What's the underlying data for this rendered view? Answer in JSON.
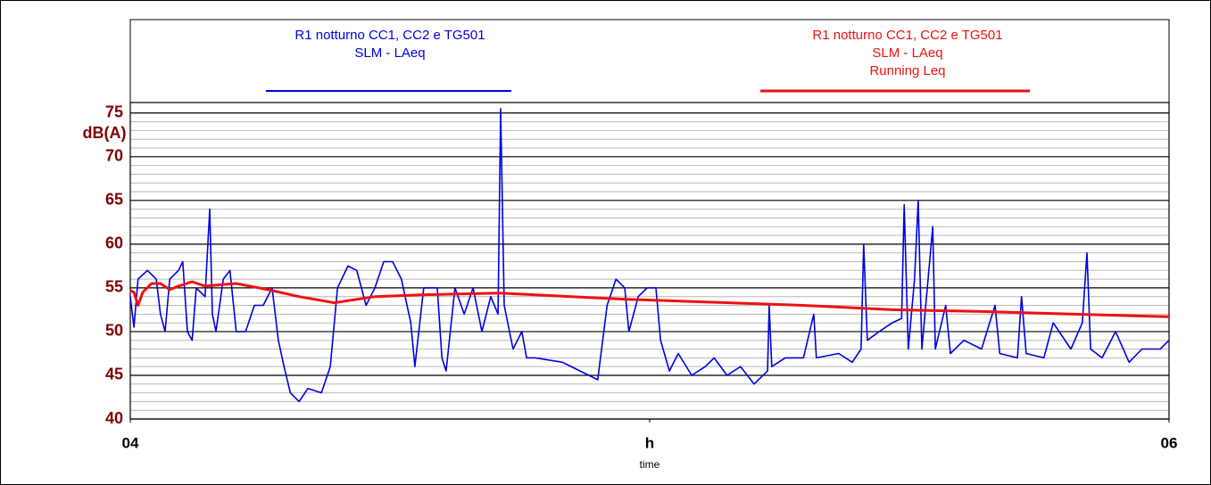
{
  "chart_data": {
    "type": "line",
    "y_label": "dB(A)",
    "x_label": "time",
    "xlim": [
      4,
      6
    ],
    "xticks": [
      {
        "value": 4,
        "label": "04"
      },
      {
        "value": 5,
        "label": "h"
      },
      {
        "value": 6,
        "label": "06"
      }
    ],
    "ylim": [
      40,
      76.2
    ],
    "yticks": [
      40,
      45,
      50,
      55,
      60,
      65,
      70,
      75
    ],
    "minor_yticks": [
      41,
      42,
      43,
      44,
      46,
      47,
      48,
      49,
      51,
      52,
      53,
      54,
      56,
      57,
      58,
      59,
      61,
      62,
      63,
      64,
      66,
      67,
      68,
      69,
      71,
      72,
      73,
      74
    ],
    "grid": true,
    "series": [
      {
        "name": [
          "R1 notturno CC1, CC2 e TG501",
          "SLM - LAeq"
        ],
        "color": "#0000e0",
        "x": [
          4.0,
          4.007,
          4.015,
          4.033,
          4.05,
          4.058,
          4.067,
          4.076,
          4.093,
          4.101,
          4.11,
          4.119,
          4.127,
          4.144,
          4.153,
          4.158,
          4.165,
          4.179,
          4.192,
          4.204,
          4.222,
          4.239,
          4.256,
          4.273,
          4.285,
          4.296,
          4.308,
          4.325,
          4.342,
          4.368,
          4.385,
          4.399,
          4.419,
          4.436,
          4.454,
          4.471,
          4.488,
          4.505,
          4.522,
          4.54,
          4.548,
          4.565,
          4.591,
          4.6,
          4.608,
          4.625,
          4.643,
          4.66,
          4.677,
          4.694,
          4.708,
          4.713,
          4.72,
          4.737,
          4.754,
          4.763,
          4.78,
          4.832,
          4.866,
          4.9,
          4.918,
          4.935,
          4.952,
          4.96,
          4.978,
          4.995,
          5.012,
          5.021,
          5.038,
          5.055,
          5.081,
          5.107,
          5.124,
          5.149,
          5.175,
          5.201,
          5.227,
          5.23,
          5.235,
          5.261,
          5.296,
          5.316,
          5.321,
          5.364,
          5.39,
          5.407,
          5.412,
          5.419,
          5.442,
          5.467,
          5.485,
          5.49,
          5.498,
          5.51,
          5.517,
          5.524,
          5.545,
          5.55,
          5.57,
          5.579,
          5.605,
          5.639,
          5.665,
          5.674,
          5.708,
          5.716,
          5.725,
          5.759,
          5.777,
          5.811,
          5.833,
          5.842,
          5.849,
          5.871,
          5.897,
          5.923,
          5.948,
          5.983,
          6.0
        ],
        "values": [
          54,
          50.5,
          56,
          57,
          56,
          52,
          50,
          56,
          57,
          58,
          50,
          49,
          55,
          54,
          64,
          52,
          50,
          56,
          57,
          50,
          50,
          53,
          53,
          55,
          49,
          46,
          43,
          42,
          43.5,
          43,
          46,
          55,
          57.5,
          57,
          53,
          55,
          58,
          58,
          56,
          51,
          46,
          55,
          55,
          47,
          45.5,
          55,
          52,
          55,
          50,
          54,
          52,
          75.5,
          53,
          48,
          50,
          47,
          47,
          46.5,
          45.5,
          44.5,
          53,
          56,
          55,
          50,
          54,
          55,
          55,
          49,
          45.5,
          47.5,
          45,
          46,
          47,
          45,
          46,
          44,
          45.5,
          53,
          46,
          47,
          47,
          52,
          47,
          47.5,
          46.5,
          48,
          60,
          49,
          50,
          51,
          51.5,
          64.5,
          48,
          56,
          65,
          48,
          62,
          48,
          53,
          47.5,
          49,
          48,
          53,
          47.5,
          47,
          54,
          47.5,
          47,
          51,
          48,
          51,
          59,
          48,
          47,
          50,
          46.5,
          48,
          48,
          49
        ]
      },
      {
        "name": [
          "R1 notturno CC1, CC2 e TG501",
          "SLM - LAeq",
          "Running Leq"
        ],
        "color": "#ee1111",
        "x": [
          4.0,
          4.007,
          4.015,
          4.024,
          4.041,
          4.058,
          4.076,
          4.093,
          4.119,
          4.144,
          4.204,
          4.265,
          4.325,
          4.393,
          4.471,
          4.557,
          4.711,
          4.952,
          5.296,
          5.467,
          5.639,
          5.811,
          6.0
        ],
        "values": [
          54.7,
          54.5,
          53,
          54.5,
          55.5,
          55.5,
          54.8,
          55.2,
          55.7,
          55.2,
          55.5,
          54.8,
          54,
          53.3,
          54,
          54.2,
          54.4,
          53.7,
          53,
          52.5,
          52.3,
          52,
          51.7
        ]
      }
    ]
  }
}
